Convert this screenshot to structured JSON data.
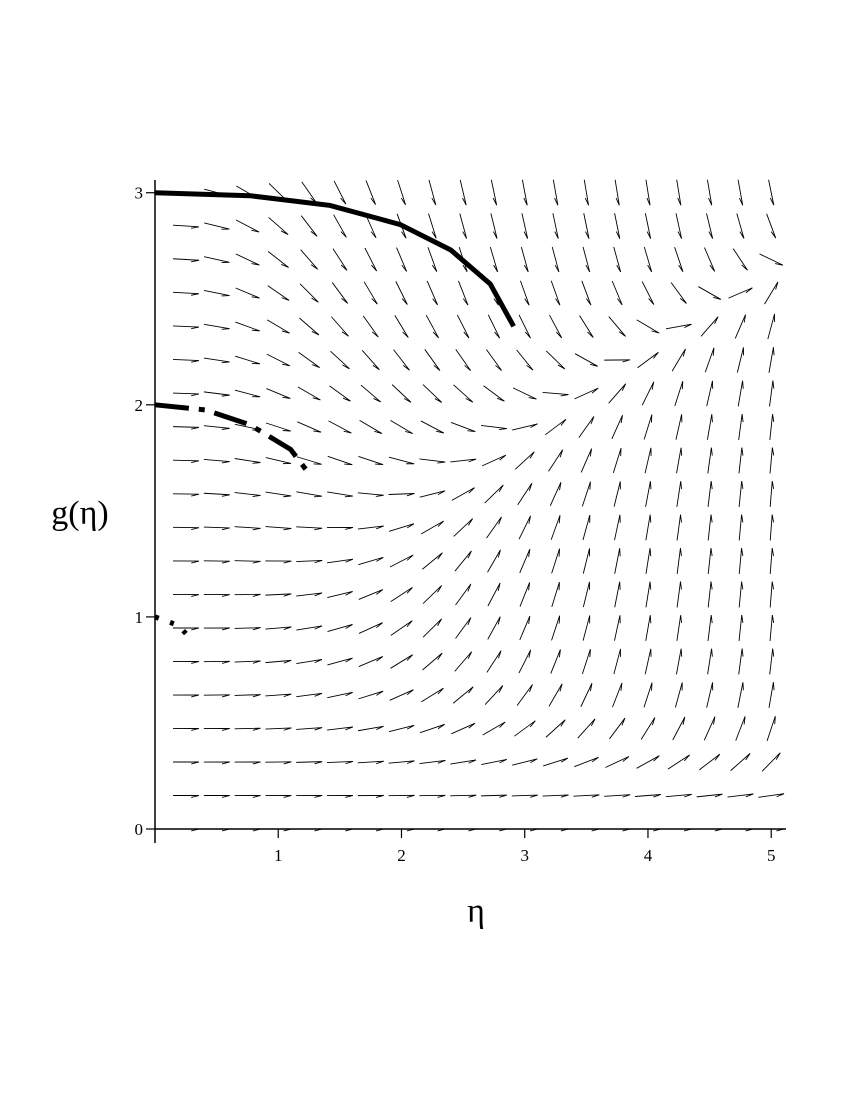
{
  "chart_data": {
    "type": "line",
    "x_label": "η",
    "y_label": "g(η)",
    "xlim": [
      0,
      5.12
    ],
    "ylim": [
      0,
      3.06
    ],
    "xticks": [
      1,
      2,
      3,
      4,
      5
    ],
    "yticks": [
      0,
      1,
      2,
      3
    ],
    "color": "#000000",
    "series": [
      {
        "style": "solid",
        "x": [
          0,
          0.77,
          1.42,
          1.99,
          2.4,
          2.72,
          2.91
        ],
        "values": [
          3.0,
          2.986,
          2.94,
          2.85,
          2.73,
          2.57,
          2.37
        ]
      },
      {
        "style": "dashdot",
        "x": [
          0,
          0.41,
          0.77,
          1.1,
          1.27
        ],
        "values": [
          2.0,
          1.976,
          1.906,
          1.79,
          1.66
        ]
      },
      {
        "style": "dotted",
        "x": [
          0,
          0.19,
          0.3
        ],
        "values": [
          1.0,
          0.96,
          0.89
        ]
      }
    ]
  }
}
